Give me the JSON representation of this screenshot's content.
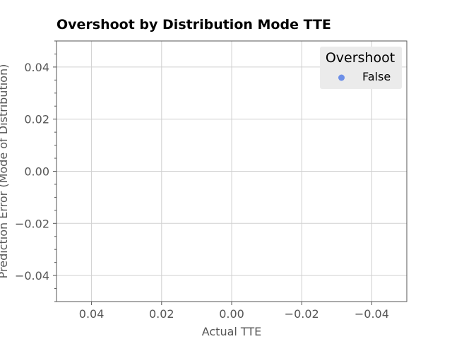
{
  "chart_data": {
    "type": "scatter",
    "title": "Overshoot by Distribution Mode TTE",
    "xlabel": "Actual TTE",
    "ylabel": "Prediction Error (Mode of Distribution)",
    "xlim": [
      0.05,
      -0.05
    ],
    "ylim": [
      -0.05,
      0.05
    ],
    "x_inverted": true,
    "x_ticks": [
      0.04,
      0.02,
      0.0,
      -0.02,
      -0.04
    ],
    "x_tick_labels": [
      "0.04",
      "0.02",
      "0.00",
      "−0.02",
      "−0.04"
    ],
    "y_ticks": [
      0.04,
      0.02,
      0.0,
      -0.02,
      -0.04
    ],
    "y_tick_labels": [
      "0.04",
      "0.02",
      "0.00",
      "−0.02",
      "−0.04"
    ],
    "grid": true,
    "legend": {
      "title": "Overshoot",
      "placement": "top-right",
      "entries": [
        {
          "label": "False",
          "color": "#6d8fe8",
          "marker": "circle"
        }
      ]
    },
    "series": [
      {
        "name": "False",
        "color": "#6d8fe8",
        "points": []
      }
    ]
  },
  "colors": {
    "grid": "#d0d0d0",
    "axes_frame": "#555555",
    "tick_mark": "#555555",
    "legend_background": "#ebebeb"
  }
}
